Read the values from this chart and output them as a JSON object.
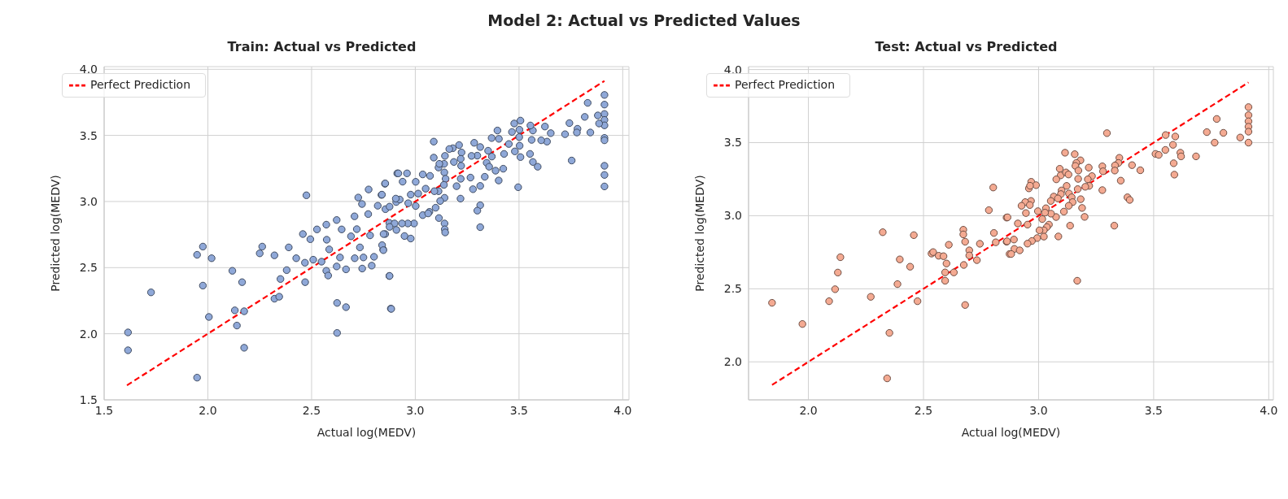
{
  "chart_data": [
    {
      "type": "scatter",
      "title": "Train: Actual vs Predicted",
      "xlabel": "Actual log(MEDV)",
      "ylabel": "Predicted log(MEDV)",
      "annotations": [
        "Model 2: Actual vs Predicted Values"
      ],
      "xlim": [
        1.5,
        4.03
      ],
      "ylim": [
        1.5,
        4.02
      ],
      "xticks": [
        1.5,
        {
          "value": 2,
          "label": "2.0"
        },
        2.5,
        {
          "value": 3,
          "label": "3.0"
        },
        3.5,
        {
          "value": 4,
          "label": "4.0"
        }
      ],
      "yticks": [
        1.5,
        {
          "value": 2,
          "label": "2.0"
        },
        2.5,
        {
          "value": 3,
          "label": "3.0"
        },
        3.5,
        {
          "value": 4,
          "label": "4.0"
        }
      ],
      "grid": true,
      "legend": "top left",
      "marker": "circle",
      "series": [
        {
          "color": "#8fa8d8",
          "x": [
            1.615,
            1.615,
            1.726,
            1.948,
            1.948,
            1.976,
            1.976,
            2.018,
            2.005,
            2.118,
            2.165,
            2.13,
            2.175,
            2.14,
            2.175,
            2.25,
            2.262,
            2.321,
            2.321,
            2.344,
            2.35,
            2.38,
            2.39,
            2.426,
            2.458,
            2.468,
            2.469,
            2.475,
            2.494,
            2.508,
            2.526,
            2.548,
            2.571,
            2.573,
            2.571,
            2.58,
            2.585,
            2.621,
            2.621,
            2.623,
            2.623,
            2.637,
            2.645,
            2.666,
            2.666,
            2.69,
            2.707,
            2.708,
            2.718,
            2.725,
            2.733,
            2.743,
            2.744,
            2.75,
            2.775,
            2.773,
            2.79,
            2.782,
            2.801,
            2.837,
            2.854,
            2.845,
            2.875,
            2.882,
            2.819,
            2.855,
            2.913,
            2.908,
            2.875,
            3.912,
            3.912,
            3.912,
            3.912,
            3.912,
            3.912,
            3.912,
            3.912,
            3.912,
            3.912,
            3.831,
            3.817,
            3.88,
            3.886,
            3.844,
            3.782,
            3.779,
            3.743,
            3.722,
            3.754,
            3.653,
            3.625,
            3.635,
            3.607,
            3.59,
            3.567,
            3.561,
            3.567,
            3.555,
            3.553,
            3.507,
            3.477,
            3.502,
            3.501,
            3.503,
            3.507,
            3.496,
            3.48,
            3.466,
            3.451,
            3.428,
            3.396,
            3.403,
            3.368,
            3.351,
            3.369,
            3.344,
            3.356,
            3.387,
            3.424,
            3.402,
            3.335,
            3.313,
            3.284,
            3.299,
            3.271,
            3.266,
            3.278,
            3.313,
            3.313,
            3.299,
            3.313,
            3.211,
            3.181,
            3.223,
            3.219,
            3.186,
            3.221,
            3.219,
            3.199,
            3.218,
            3.143,
            3.139,
            3.089,
            3.089,
            3.112,
            3.14,
            3.146,
            3.138,
            3.141,
            3.141,
            3.142,
            3.144,
            3.114,
            3.12,
            3.112,
            3.071,
            3.036,
            3.002,
            3.05,
            3.014,
            2.978,
            2.96,
            2.918,
            2.939,
            2.855,
            2.839,
            2.925,
            2.906,
            2.966,
            3.002,
            3.068,
            3.098,
            3.036,
            3.062,
            2.994,
            2.964,
            2.936,
            2.9,
            2.876,
            2.909,
            2.847,
            2.948,
            2.978,
            2.856,
            2.876,
            2.84,
            2.846,
            2.876,
            2.884,
            3.092,
            3.116,
            3.164
          ],
          "values": [
            2.01,
            1.875,
            2.313,
            1.668,
            2.597,
            2.659,
            2.364,
            2.571,
            2.127,
            2.476,
            2.39,
            2.177,
            2.17,
            2.062,
            1.894,
            2.608,
            2.659,
            2.593,
            2.265,
            2.28,
            2.414,
            2.481,
            2.653,
            2.571,
            2.754,
            2.537,
            2.39,
            3.047,
            2.715,
            2.56,
            2.789,
            2.545,
            2.825,
            2.711,
            2.476,
            2.44,
            2.638,
            2.86,
            2.509,
            2.233,
            2.006,
            2.577,
            2.789,
            2.487,
            2.201,
            2.737,
            2.888,
            2.571,
            2.791,
            3.03,
            2.653,
            2.981,
            2.493,
            2.577,
            3.091,
            2.905,
            2.515,
            2.744,
            2.582,
            3.05,
            3.134,
            2.638,
            2.437,
            2.19,
            2.968,
            2.754,
            3.213,
            2.996,
            2.838,
            3.806,
            3.733,
            3.662,
            3.617,
            3.576,
            3.481,
            3.463,
            3.27,
            3.201,
            3.114,
            3.746,
            3.64,
            3.651,
            3.59,
            3.522,
            3.55,
            3.522,
            3.593,
            3.509,
            3.31,
            3.517,
            3.567,
            3.453,
            3.463,
            3.263,
            3.299,
            3.466,
            3.537,
            3.575,
            3.36,
            3.612,
            3.59,
            3.543,
            3.487,
            3.422,
            3.336,
            3.108,
            3.379,
            3.526,
            3.435,
            3.36,
            3.537,
            3.474,
            3.48,
            3.384,
            3.34,
            3.293,
            3.263,
            3.233,
            3.248,
            3.159,
            3.187,
            3.412,
            3.444,
            3.347,
            3.345,
            3.181,
            3.093,
            3.118,
            2.972,
            2.931,
            2.806,
            3.427,
            3.403,
            3.371,
            3.323,
            3.299,
            3.27,
            3.172,
            3.116,
            3.022,
            3.345,
            3.285,
            3.453,
            3.332,
            3.257,
            3.22,
            3.172,
            3.126,
            3.028,
            2.834,
            2.79,
            2.766,
            2.875,
            3.004,
            3.078,
            3.194,
            3.205,
            3.149,
            3.097,
            3.06,
            3.052,
            3.213,
            3.213,
            3.15,
            3.137,
            3.052,
            3.015,
            3.022,
            2.987,
            2.966,
            2.922,
            2.953,
            2.897,
            2.91,
            2.834,
            2.834,
            2.834,
            2.834,
            2.808,
            2.785,
            2.754,
            2.739,
            2.72,
            2.942,
            2.961,
            2.67,
            2.632,
            2.437,
            2.188,
            3.078,
            3.285,
            3.397
          ]
        },
        {
          "type": "line",
          "name": "Perfect Prediction",
          "color": "#ff0000",
          "line_style": "dashed",
          "marker": "none",
          "x": [
            1.61,
            3.912
          ],
          "values": [
            1.61,
            3.912
          ]
        }
      ]
    },
    {
      "type": "scatter",
      "title": "Test: Actual vs Predicted",
      "xlabel": "Actual log(MEDV)",
      "ylabel": "Predicted log(MEDV)",
      "xlim": [
        1.74,
        4.02
      ],
      "ylim": [
        1.74,
        4.02
      ],
      "xticks": [
        {
          "value": 2,
          "label": "2.0"
        },
        2.5,
        {
          "value": 3,
          "label": "3.0"
        },
        3.5,
        {
          "value": 4,
          "label": "4.0"
        }
      ],
      "yticks": [
        {
          "value": 2,
          "label": "2.0"
        },
        2.5,
        {
          "value": 3,
          "label": "3.0"
        },
        3.5,
        {
          "value": 4,
          "label": "4.0"
        }
      ],
      "grid": true,
      "legend": "top left",
      "marker": "circle",
      "series": [
        {
          "color": "#f4aa92",
          "x": [
            1.842,
            1.974,
            2.09,
            2.116,
            2.128,
            2.139,
            2.271,
            2.342,
            2.352,
            2.323,
            2.387,
            2.397,
            2.442,
            2.458,
            2.474,
            2.535,
            2.542,
            2.566,
            2.587,
            2.6,
            2.594,
            2.594,
            2.61,
            2.632,
            2.673,
            2.673,
            2.681,
            2.675,
            2.681,
            2.699,
            2.699,
            2.732,
            2.745,
            2.784,
            2.803,
            2.806,
            2.814,
            2.861,
            2.861,
            2.874,
            3.912,
            3.912,
            3.912,
            3.912,
            3.912,
            3.912,
            3.876,
            3.774,
            3.803,
            3.731,
            3.765,
            3.684,
            3.594,
            3.552,
            3.584,
            3.551,
            3.616,
            3.619,
            3.587,
            3.59,
            3.508,
            3.522,
            3.442,
            3.406,
            3.351,
            3.347,
            3.332,
            3.331,
            3.357,
            3.297,
            3.277,
            3.28,
            3.277,
            3.386,
            3.396,
            3.329,
            3.218,
            3.232,
            3.214,
            3.22,
            3.203,
            3.172,
            3.17,
            3.183,
            3.189,
            3.2,
            3.168,
            3.115,
            3.157,
            3.182,
            3.164,
            3.16,
            3.173,
            3.092,
            3.096,
            3.119,
            3.13,
            3.077,
            3.122,
            3.1,
            3.097,
            3.066,
            3.053,
            3.084,
            3.132,
            3.144,
            3.148,
            3.131,
            3.11,
            3.076,
            3.054,
            3.032,
            3.028,
            2.997,
            3.016,
            3.137,
            3.086,
            3.045,
            3.036,
            3.023,
            3.023,
            3.004,
            2.994,
            2.971,
            2.952,
            2.968,
            2.958,
            2.989,
            2.963,
            2.967,
            2.942,
            2.926,
            2.962,
            2.945,
            2.952,
            2.91,
            2.865,
            2.863,
            2.893,
            2.895,
            2.918,
            2.881
          ],
          "values": [
            2.404,
            2.259,
            2.415,
            2.497,
            2.611,
            2.716,
            2.445,
            1.887,
            2.198,
            2.887,
            2.532,
            2.701,
            2.651,
            2.867,
            2.415,
            2.741,
            2.751,
            2.726,
            2.723,
            2.673,
            2.612,
            2.555,
            2.801,
            2.612,
            2.904,
            2.872,
            2.822,
            2.663,
            2.389,
            2.763,
            2.728,
            2.696,
            2.808,
            3.038,
            3.193,
            2.882,
            2.818,
            2.987,
            2.822,
            2.738,
            3.743,
            3.688,
            3.646,
            3.609,
            3.575,
            3.5,
            3.535,
            3.662,
            3.567,
            3.572,
            3.5,
            3.406,
            3.542,
            3.552,
            3.485,
            3.45,
            3.431,
            3.406,
            3.359,
            3.281,
            3.423,
            3.416,
            3.311,
            3.346,
            3.396,
            3.361,
            3.344,
            3.309,
            3.24,
            3.565,
            3.338,
            3.304,
            3.175,
            3.126,
            3.108,
            2.932,
            3.329,
            3.271,
            3.249,
            3.204,
            3.198,
            3.252,
            3.182,
            3.113,
            3.053,
            2.992,
            2.555,
            3.431,
            3.421,
            3.379,
            3.361,
            3.341,
            3.309,
            3.321,
            3.276,
            3.296,
            3.282,
            3.249,
            3.204,
            3.173,
            3.148,
            3.131,
            3.101,
            3.118,
            3.152,
            3.126,
            3.093,
            3.068,
            3.028,
            2.991,
            3.014,
            3.051,
            3.021,
            3.031,
            2.977,
            2.932,
            2.858,
            2.939,
            2.922,
            2.9,
            2.857,
            2.9,
            2.847,
            2.827,
            2.809,
            3.232,
            3.187,
            3.209,
            3.205,
            3.101,
            3.093,
            3.068,
            3.073,
            3.018,
            2.939,
            2.947,
            2.989,
            2.825,
            2.837,
            2.773,
            2.763,
            2.738
          ]
        },
        {
          "type": "line",
          "name": "Perfect Prediction",
          "color": "#ff0000",
          "line_style": "dashed",
          "marker": "none",
          "x": [
            1.842,
            3.912
          ],
          "values": [
            1.842,
            3.912
          ]
        }
      ]
    }
  ]
}
